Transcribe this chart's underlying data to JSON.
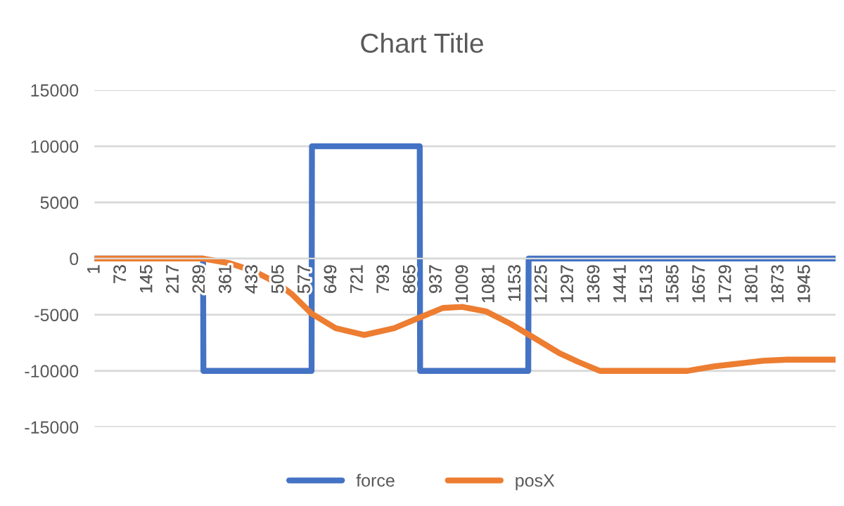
{
  "chart_data": {
    "type": "line",
    "title": "Chart Title",
    "xlim": [
      0,
      2028
    ],
    "xticks": [
      1,
      73,
      145,
      217,
      289,
      361,
      433,
      505,
      577,
      649,
      721,
      793,
      865,
      937,
      1009,
      1081,
      1153,
      1225,
      1297,
      1369,
      1441,
      1513,
      1585,
      1657,
      1729,
      1801,
      1873,
      1945
    ],
    "ylim": [
      -15000,
      15000
    ],
    "yticks": [
      -15000,
      -10000,
      -5000,
      0,
      5000,
      10000,
      15000
    ],
    "grid": "y",
    "legend": "bottom",
    "marker": "none",
    "line_style": "solid",
    "series": [
      {
        "name": "force",
        "color": "#4472c4",
        "x": [
          1,
          297,
          298,
          594,
          595,
          890,
          891,
          1187,
          1188,
          2028
        ],
        "values": [
          0,
          0,
          -10000,
          -10000,
          10000,
          10000,
          -10000,
          -10000,
          0,
          0
        ]
      },
      {
        "name": "posX",
        "color": "#ed7d31",
        "x": [
          1,
          296,
          368,
          435,
          501,
          541,
          594,
          660,
          738,
          820,
          893,
          953,
          1006,
          1071,
          1138,
          1205,
          1271,
          1324,
          1383,
          1622,
          1695,
          1829,
          1895,
          1982,
          2028
        ],
        "values": [
          0,
          0,
          -400,
          -1100,
          -2200,
          -3200,
          -4900,
          -6200,
          -6800,
          -6200,
          -5200,
          -4400,
          -4300,
          -4700,
          -5800,
          -7100,
          -8400,
          -9200,
          -10000,
          -10000,
          -9600,
          -9100,
          -9000,
          -9000,
          -9000
        ]
      }
    ]
  }
}
